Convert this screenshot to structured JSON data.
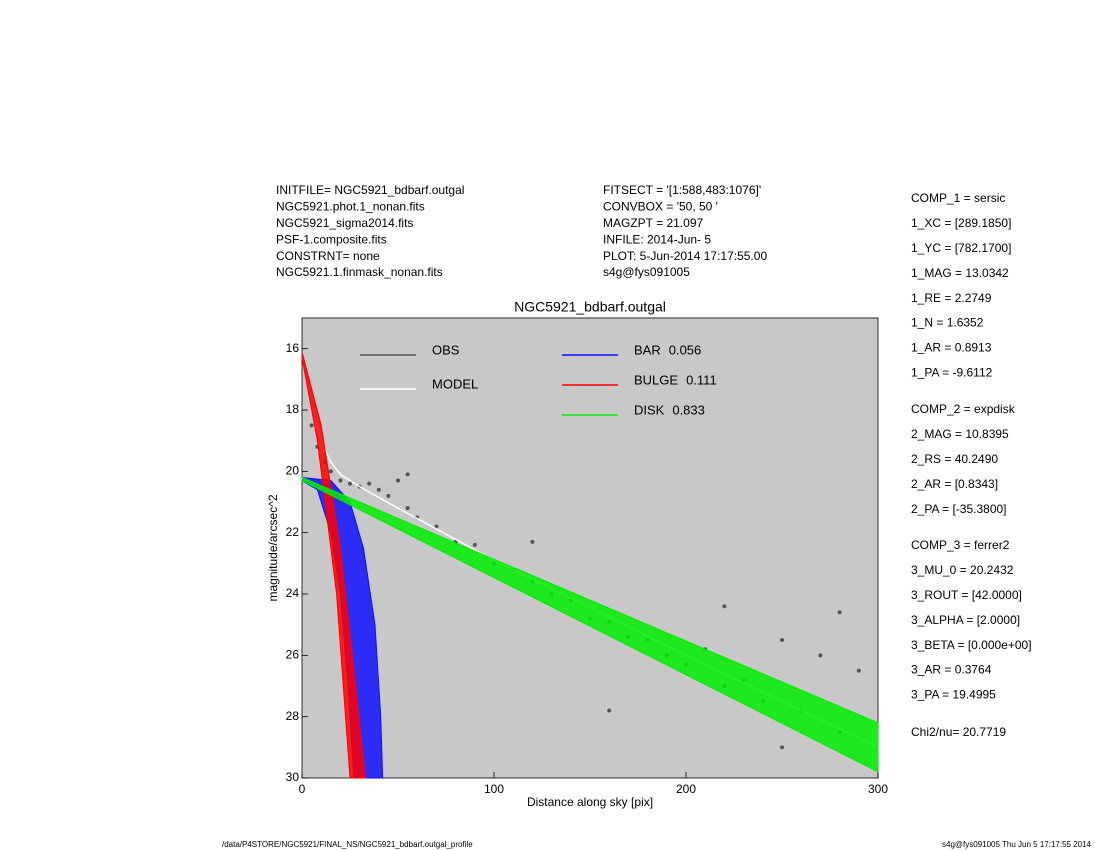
{
  "header": {
    "left": [
      "INITFILE= NGC5921_bdbarf.outgal",
      "NGC5921.phot.1_nonan.fits",
      "NGC5921_sigma2014.fits",
      "PSF-1.composite.fits",
      "CONSTRNT= none",
      "NGC5921.1.finmask_nonan.fits"
    ],
    "middle": [
      "FITSECT = '[1:588,483:1076]'",
      "CONVBOX = '50, 50  '",
      "MAGZPT =            21.097",
      "INFILE: 2014-Jun- 5",
      "PLOT:  5-Jun-2014 17:17:55.00",
      "s4g@fys091005"
    ]
  },
  "parameters": [
    [
      "COMP_1  = sersic",
      "1_XC    = [289.1850]",
      "1_YC    = [782.1700]",
      "1_MAG   = 13.0342",
      "1_RE    = 2.2749",
      "1_N     = 1.6352",
      "1_AR    = 0.8913",
      "1_PA    = -9.6112"
    ],
    [
      "COMP_2  = expdisk",
      "2_MAG   = 10.8395",
      "2_RS    = 40.2490",
      "2_AR    = [0.8343]",
      "2_PA    = [-35.3800]"
    ],
    [
      "COMP_3  = ferrer2",
      "3_MU_0  = 20.2432",
      "3_ROUT  = [42.0000]",
      "3_ALPHA = [2.0000]",
      "3_BETA  = [0.000e+00]",
      "3_AR    = 0.3764",
      "3_PA    = 19.4995"
    ],
    [
      "Chi2/nu=      20.7719"
    ]
  ],
  "footer": {
    "left": "/data/P4STORE/NGC5921/FINAL_NS/NGC5921_bdbarf.outgal_profile",
    "right": "s4g@fys091005  Thu Jun  5 17:17:55 2014"
  },
  "chart_data": {
    "type": "scatter",
    "title": "NGC5921_bdbarf.outgal",
    "x_label": "Distance along sky [pix]",
    "y_label": "magnitude/arcsec^2",
    "xlim": [
      0,
      300
    ],
    "xticks": [
      0,
      100,
      200,
      300
    ],
    "ylim": [
      30,
      15
    ],
    "yticks": [
      16,
      18,
      20,
      22,
      24,
      26,
      28,
      30
    ],
    "series": [
      {
        "name": "OBS",
        "type": "scatter",
        "color": "#555555",
        "x": [
          5,
          8,
          12,
          15,
          20,
          25,
          30,
          35,
          40,
          45,
          50,
          55,
          60,
          70,
          80,
          90,
          100,
          110,
          120,
          130,
          140,
          150,
          160,
          170,
          180,
          190,
          200,
          210,
          220,
          230,
          240,
          250,
          260,
          270,
          280,
          290,
          55,
          120,
          160,
          220,
          250,
          280
        ],
        "values": [
          18.5,
          19.2,
          19.7,
          20.0,
          20.3,
          20.4,
          20.5,
          20.4,
          20.6,
          20.8,
          20.3,
          21.2,
          21.5,
          21.8,
          22.3,
          22.4,
          23.0,
          23.2,
          23.6,
          24.0,
          24.2,
          24.8,
          24.9,
          25.4,
          25.5,
          26.0,
          26.3,
          25.8,
          27.0,
          26.8,
          27.5,
          25.5,
          27.8,
          26.0,
          28.5,
          26.5,
          20.1,
          22.3,
          27.8,
          24.4,
          29.0,
          24.6
        ]
      },
      {
        "name": "MODEL",
        "type": "line",
        "color": "#ffffff",
        "x": [
          5,
          10,
          15,
          20,
          30,
          50,
          100,
          200,
          300
        ],
        "values": [
          18.0,
          19.0,
          19.7,
          20.1,
          20.5,
          21.2,
          22.9,
          26.0,
          29.0
        ]
      },
      {
        "name": "BAR",
        "type": "area",
        "color": "#1010ff",
        "fraction": 0.056,
        "x": [
          0,
          15,
          25,
          32,
          38,
          41,
          42,
          27,
          24,
          20,
          15,
          8,
          0
        ],
        "values": [
          20.2,
          20.3,
          21,
          22.5,
          25,
          28,
          30,
          30,
          27,
          24,
          22,
          20.6,
          20.3
        ]
      },
      {
        "name": "BULGE",
        "type": "area",
        "color": "#ff0000",
        "fraction": 0.111,
        "x": [
          0,
          10,
          20,
          28,
          33,
          25,
          18,
          8,
          0
        ],
        "values": [
          16.1,
          18.5,
          22.5,
          27,
          30,
          30,
          24,
          19,
          16.3
        ]
      },
      {
        "name": "DISK",
        "type": "area",
        "color": "#00ee00",
        "fraction": 0.833,
        "x": [
          0,
          300,
          300,
          0
        ],
        "values": [
          20.2,
          28.2,
          29.8,
          20.3
        ]
      }
    ]
  }
}
